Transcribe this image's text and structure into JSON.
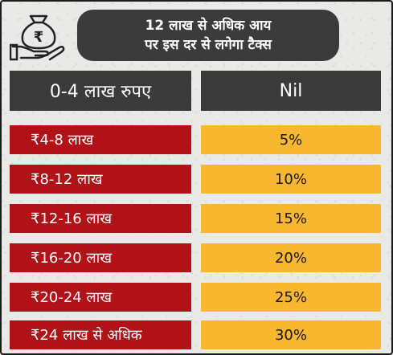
{
  "title": {
    "line1": "12 लाख से अधिक आय",
    "line2": "पर इस दर से लगेगा टैक्स"
  },
  "icon": "rupee-money-bag-on-hand-icon",
  "header": {
    "slab": "0-4 लाख रुपए",
    "rate": "Nil"
  },
  "rows": [
    {
      "slab": "₹4-8 लाख",
      "rate": "5%"
    },
    {
      "slab": "₹8-12 लाख",
      "rate": "10%"
    },
    {
      "slab": "₹12-16 लाख",
      "rate": "15%"
    },
    {
      "slab": "₹16-20 लाख",
      "rate": "20%"
    },
    {
      "slab": "₹20-24 लाख",
      "rate": "25%"
    },
    {
      "slab": "₹24 लाख से अधिक",
      "rate": "30%"
    }
  ],
  "colors": {
    "title_bg": "#3b3b3b",
    "header_bg": "#3a3a3a",
    "slab_bg": "#b01217",
    "rate_bg": "#f8b72f"
  }
}
